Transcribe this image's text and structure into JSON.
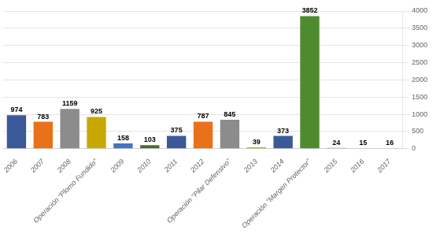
{
  "chart_data": {
    "type": "bar",
    "categories": [
      "2006",
      "2007",
      "2008",
      "Operación “Plomo Fundido”",
      "2009",
      "2010",
      "2011",
      "2012",
      "Operación “Pilar Defensivo”",
      "2013",
      "2014",
      "Operación “Margen Protector”",
      "2015",
      "2016",
      "2017"
    ],
    "values": [
      974,
      783,
      1159,
      925,
      158,
      103,
      375,
      787,
      845,
      39,
      373,
      3852,
      24,
      15,
      16
    ],
    "colors": [
      "#3B5998",
      "#E8711A",
      "#8C8C8C",
      "#C8A800",
      "#4472C4",
      "#4E6B2E",
      "#3B5998",
      "#E8711A",
      "#8C8C8C",
      "#C8A800",
      "#3B5998",
      "#4E8B2E",
      "#8B8BC8",
      "#C8A078",
      "#B8B8B8"
    ],
    "ylim": [
      0,
      4000
    ],
    "yticks": [
      0,
      500,
      1000,
      1500,
      2000,
      2500,
      3000,
      3500,
      4000
    ],
    "grid": true,
    "data_labels": true
  }
}
